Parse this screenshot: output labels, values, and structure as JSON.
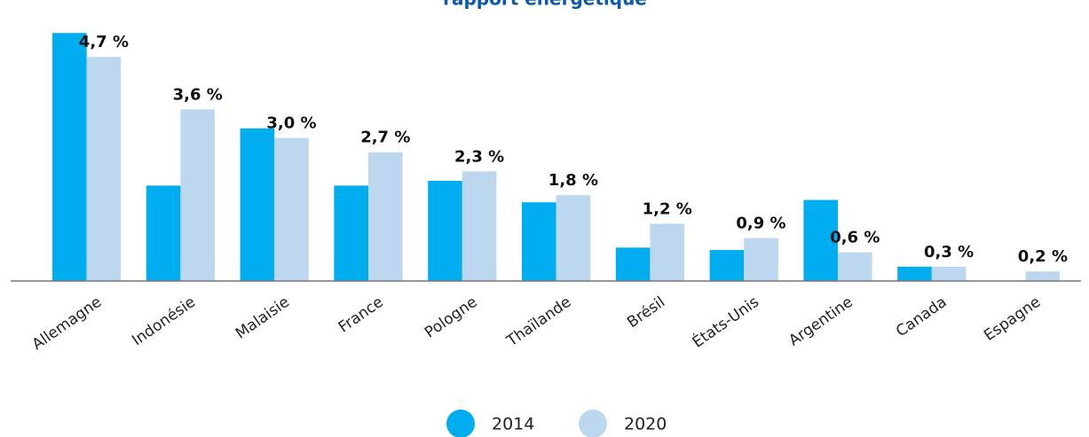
{
  "chart_data": {
    "type": "bar",
    "title": "rapport énergétique",
    "categories": [
      "Allemagne",
      "Indonésie",
      "Malaisie",
      "France",
      "Pologne",
      "Thaïlande",
      "Brésil",
      "États-Unis",
      "Argentine",
      "Canada",
      "Espagne"
    ],
    "series": [
      {
        "name": "2014",
        "color": "#00adee",
        "values": [
          5.2,
          2.0,
          3.2,
          2.0,
          2.1,
          1.65,
          0.7,
          0.65,
          1.7,
          0.3,
          0
        ]
      },
      {
        "name": "2020",
        "color": "#bdd7ee",
        "values": [
          4.7,
          3.6,
          3.0,
          2.7,
          2.3,
          1.8,
          1.2,
          0.9,
          0.6,
          0.3,
          0.2
        ],
        "value_labels": [
          "4,7 %",
          "3,6 %",
          "3,0 %",
          "2,7 %",
          "2,3 %",
          "1,8 %",
          "1,2 %",
          "0,9 %",
          "0,6 %",
          "0,3 %",
          "0,2 %"
        ]
      }
    ],
    "legend": "bottom"
  }
}
